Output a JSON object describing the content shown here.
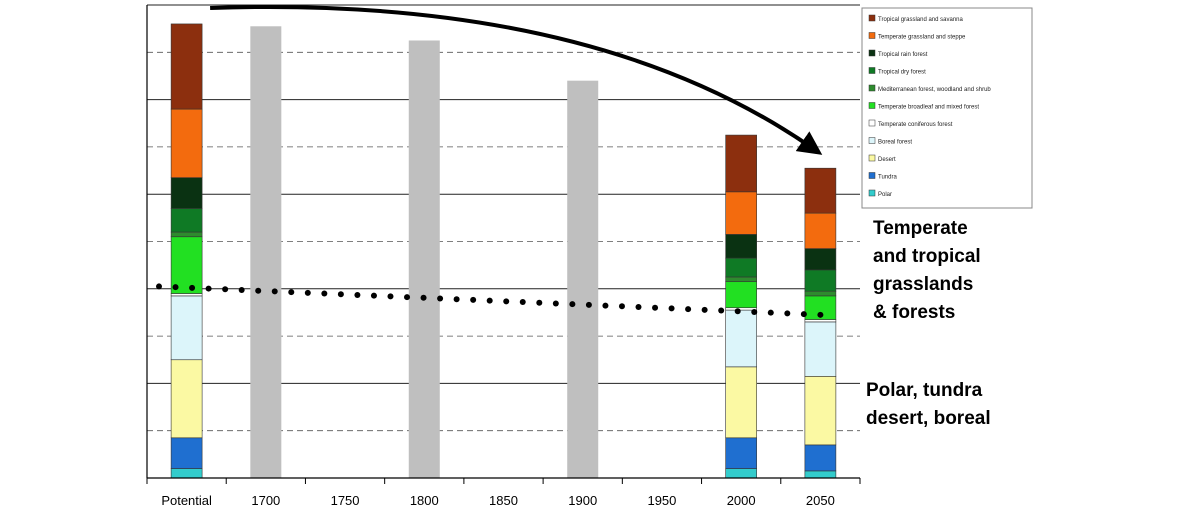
{
  "chart_data": {
    "type": "bar",
    "stacked": true,
    "categories": [
      "Potential",
      "1700",
      "1750",
      "1800",
      "1850",
      "1900",
      "1950",
      "2000",
      "2050"
    ],
    "ylim": [
      0,
      100
    ],
    "grid": true,
    "legend_position": "top-right",
    "single_series_color": "#bfbfbf",
    "single_series": [
      {
        "category": "1700",
        "value": 95.5
      },
      {
        "category": "1800",
        "value": 92.5
      },
      {
        "category": "1900",
        "value": 84
      }
    ],
    "series": [
      {
        "name": "Polar",
        "color": "#33cccc",
        "values": [
          2,
          null,
          null,
          null,
          null,
          null,
          null,
          2,
          1.5
        ]
      },
      {
        "name": "Tundra",
        "color": "#1f6fd0",
        "values": [
          6.5,
          null,
          null,
          null,
          null,
          null,
          null,
          6.5,
          5.5
        ]
      },
      {
        "name": "Desert",
        "color": "#fbf9a3",
        "values": [
          16.5,
          null,
          null,
          null,
          null,
          null,
          null,
          15,
          14.5
        ]
      },
      {
        "name": "Boreal forest",
        "color": "#dcf5fa",
        "values": [
          13.5,
          null,
          null,
          null,
          null,
          null,
          null,
          12,
          11.5
        ]
      },
      {
        "name": "Temperate coniferous forest",
        "color": "#ffffff",
        "values": [
          0.5,
          null,
          null,
          null,
          null,
          null,
          null,
          0.5,
          0.5
        ]
      },
      {
        "name": "Temperate broadleaf and mixed forest",
        "color": "#22e022",
        "values": [
          12,
          null,
          null,
          null,
          null,
          null,
          null,
          5.5,
          5
        ]
      },
      {
        "name": "Mediterranean forest, woodland and shrub",
        "color": "#2e8b2e",
        "values": [
          1,
          null,
          null,
          null,
          null,
          null,
          null,
          1,
          1
        ]
      },
      {
        "name": "Tropical dry forest",
        "color": "#0f7a25",
        "values": [
          5,
          null,
          null,
          null,
          null,
          null,
          null,
          4,
          4.5
        ]
      },
      {
        "name": "Tropical rain forest",
        "color": "#0a3212",
        "values": [
          6.5,
          null,
          null,
          null,
          null,
          null,
          null,
          5,
          4.5
        ]
      },
      {
        "name": "Temperate grassland and steppe",
        "color": "#f36b0e",
        "values": [
          14.5,
          null,
          null,
          null,
          null,
          null,
          null,
          9,
          7.5
        ]
      },
      {
        "name": "Tropical grassland and savanna",
        "color": "#8c2f0e",
        "values": [
          18,
          null,
          null,
          null,
          null,
          null,
          null,
          12,
          9.5
        ]
      }
    ],
    "legend": [
      "Tropical grassland and savanna",
      "Temperate grassland and steppe",
      "Tropical rain forest",
      "Tropical dry forest",
      "Mediterranean forest, woodland and shrub",
      "Temperate broadleaf and mixed forest",
      "Temperate coniferous forest",
      "Boreal forest",
      "Desert",
      "Tundra",
      "Polar"
    ],
    "dotted_line": {
      "start_value": 40.5,
      "end_value": 34.5
    },
    "arrow": {
      "from_category": "Potential",
      "to_category": "2050"
    },
    "annotations": [
      {
        "lines": [
          "Temperate",
          "and tropical",
          "grasslands",
          "& forests"
        ]
      },
      {
        "lines": [
          "Polar, tundra",
          "desert, boreal"
        ]
      }
    ]
  }
}
